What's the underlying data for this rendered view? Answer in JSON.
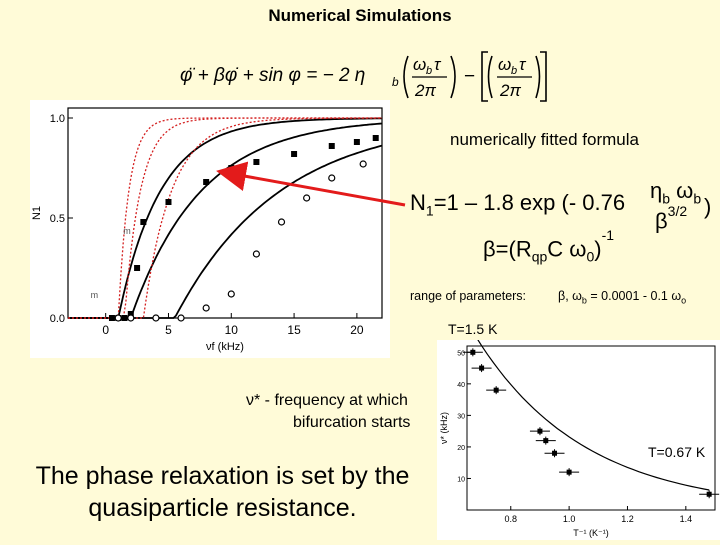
{
  "title": "Numerical Simulations",
  "equation": {
    "lhs": "φ̈ + βφ̇ + sin φ = − 2 η",
    "lhs_sub": "b",
    "frac1_num": "ω",
    "frac1_num_sub": "b",
    "frac1_num_tail": "τ",
    "frac1_den": "2π",
    "minus": "−",
    "frac2_num": "ω",
    "frac2_num_sub": "b",
    "frac2_num_tail": "τ",
    "frac2_den": "2π"
  },
  "fitted_label": "numerically fitted formula",
  "formula": {
    "n": "N",
    "n_sub": "1",
    "body": "=1 – 1.8 exp (- 0.76",
    "frac_num": "η",
    "frac_num_sub": "b",
    "frac_num_tail": " ω",
    "frac_num_sub2": "b",
    "frac_den": "β",
    "frac_den_sup": "3/2",
    "close": ")"
  },
  "beta_def": {
    "lhs": "β=(R",
    "sub1": "qp",
    "mid": "C ω",
    "sub2": "0",
    "rhs": ")",
    "sup": "-1"
  },
  "range": {
    "label": "range of parameters:",
    "value": "β, ω",
    "value_sub": "b",
    "value_tail": " = 0.0001 - 0.1 ω",
    "value_sub2": "o"
  },
  "t1": "T=1.5 K",
  "t2": "T=0.67 K",
  "nu_star": {
    "line1": "ν* - frequency at which",
    "line2": "bifurcation starts"
  },
  "conclusion": {
    "line1": "The phase relaxation is set by the",
    "line2": "quasiparticle resistance."
  },
  "colors": {
    "background": "#fffbd8",
    "arrow": "#e31b1b",
    "dotted_curve": "#d42020"
  },
  "chart_data": [
    {
      "type": "scatter",
      "title": "",
      "xlabel": "νf (kHz)",
      "ylabel": "N1",
      "xlim": [
        -3,
        22
      ],
      "ylim": [
        0,
        1.05
      ],
      "x_ticks": [
        "0",
        "5",
        "10",
        "15",
        "20"
      ],
      "y_ticks": [
        "0.0",
        "0.5",
        "1.0"
      ],
      "panel_marks": [
        "m",
        "m"
      ],
      "series": [
        {
          "marker": "square",
          "x": [
            0.5,
            1,
            1.5,
            2,
            2.5,
            3,
            5,
            8,
            10,
            12,
            15,
            18,
            20,
            21.5
          ],
          "y": [
            0,
            0,
            0,
            0.02,
            0.25,
            0.48,
            0.58,
            0.68,
            0.75,
            0.78,
            0.82,
            0.86,
            0.88,
            0.9
          ]
        },
        {
          "marker": "circle",
          "x": [
            1,
            2,
            4,
            6,
            8,
            10,
            12,
            14,
            16,
            18,
            20.5
          ],
          "y": [
            0,
            0,
            0,
            0,
            0.05,
            0.12,
            0.32,
            0.48,
            0.6,
            0.7,
            0.77
          ]
        }
      ],
      "fit_curves": [
        {
          "style": "solid",
          "x0": 1.0,
          "k": 0.3
        },
        {
          "style": "solid",
          "x0": 2.0,
          "k": 0.18
        },
        {
          "style": "solid",
          "x0": 5.5,
          "k": 0.12
        },
        {
          "style": "dotted",
          "x0": 1.0,
          "k": 1.2
        },
        {
          "style": "dotted",
          "x0": 1.5,
          "k": 0.8
        },
        {
          "style": "dotted",
          "x0": 3.0,
          "k": 0.45
        }
      ]
    },
    {
      "type": "scatter",
      "title": "",
      "xlabel": "T⁻¹ (K⁻¹)",
      "ylabel": "ν* (kHz)",
      "xlim": [
        0.65,
        1.5
      ],
      "ylim": [
        0,
        52
      ],
      "x_ticks": [
        "0.8",
        "1.0",
        "1.2",
        "1.4"
      ],
      "y_ticks": [
        "10",
        "20",
        "30",
        "40",
        "50"
      ],
      "x": [
        0.67,
        0.7,
        0.75,
        0.9,
        0.92,
        0.95,
        1.0,
        1.48
      ],
      "y": [
        50,
        45,
        38,
        25,
        22,
        18,
        12,
        5
      ],
      "fit": {
        "a": 55,
        "b": 2.7
      }
    }
  ]
}
